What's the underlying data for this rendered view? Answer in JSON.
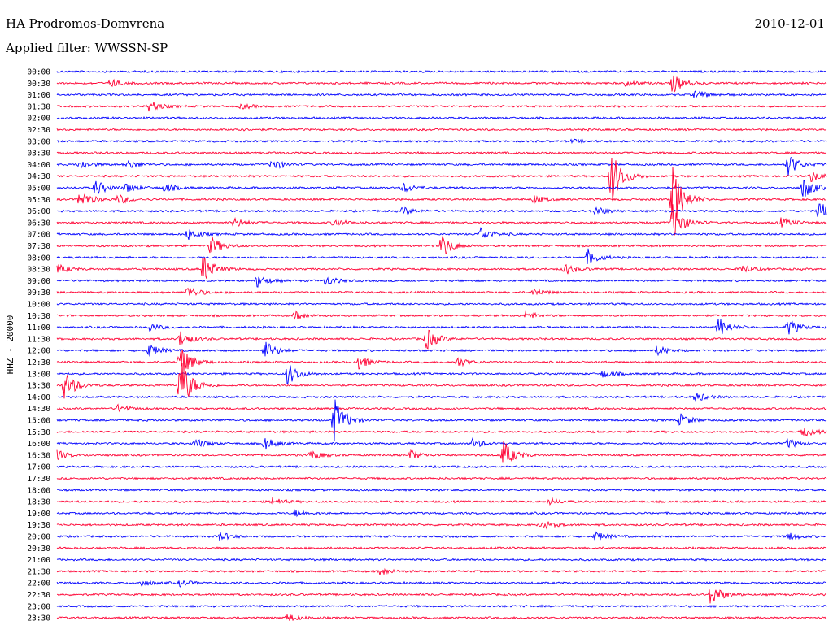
{
  "header": {
    "station": "HA Prodromos-Domvrena",
    "date": "2010-12-01",
    "filter": "Applied filter: WWSSN-SP"
  },
  "chart_data": {
    "type": "line",
    "ylabel": "HHZ - 20000",
    "colors": {
      "even_row": "#0000ff",
      "odd_row": "#ff0033"
    },
    "rows": [
      "00:00",
      "00:30",
      "01:00",
      "01:30",
      "02:00",
      "02:30",
      "03:00",
      "03:30",
      "04:00",
      "04:30",
      "05:00",
      "05:30",
      "06:00",
      "06:30",
      "07:00",
      "07:30",
      "08:00",
      "08:30",
      "09:00",
      "09:30",
      "10:00",
      "10:30",
      "11:00",
      "11:30",
      "12:00",
      "12:30",
      "13:00",
      "13:30",
      "14:00",
      "14:30",
      "15:00",
      "15:30",
      "16:00",
      "16:30",
      "17:00",
      "17:30",
      "18:00",
      "18:30",
      "19:00",
      "19:30",
      "20:00",
      "20:30",
      "21:00",
      "21:30",
      "22:00",
      "22:30",
      "23:00",
      "23:30"
    ],
    "events": [
      {
        "row": 1,
        "t": 0.07,
        "amp": 5
      },
      {
        "row": 1,
        "t": 0.74,
        "amp": 4
      },
      {
        "row": 1,
        "t": 0.8,
        "amp": 12
      },
      {
        "row": 2,
        "t": 0.83,
        "amp": 6
      },
      {
        "row": 3,
        "t": 0.12,
        "amp": 8
      },
      {
        "row": 3,
        "t": 0.24,
        "amp": 3
      },
      {
        "row": 5,
        "t": 0.23,
        "amp": 2
      },
      {
        "row": 6,
        "t": 0.67,
        "amp": 2
      },
      {
        "row": 8,
        "t": 0.03,
        "amp": 6
      },
      {
        "row": 8,
        "t": 0.09,
        "amp": 6
      },
      {
        "row": 8,
        "t": 0.28,
        "amp": 7
      },
      {
        "row": 8,
        "t": 0.95,
        "amp": 14
      },
      {
        "row": 9,
        "t": 0.72,
        "amp": 35
      },
      {
        "row": 9,
        "t": 0.98,
        "amp": 7
      },
      {
        "row": 10,
        "t": 0.05,
        "amp": 10
      },
      {
        "row": 10,
        "t": 0.09,
        "amp": 6
      },
      {
        "row": 10,
        "t": 0.14,
        "amp": 6
      },
      {
        "row": 10,
        "t": 0.45,
        "amp": 6
      },
      {
        "row": 10,
        "t": 0.97,
        "amp": 14
      },
      {
        "row": 11,
        "t": 0.03,
        "amp": 12
      },
      {
        "row": 11,
        "t": 0.08,
        "amp": 6
      },
      {
        "row": 11,
        "t": 0.62,
        "amp": 5
      },
      {
        "row": 11,
        "t": 0.8,
        "amp": 40
      },
      {
        "row": 12,
        "t": 0.45,
        "amp": 5
      },
      {
        "row": 12,
        "t": 0.7,
        "amp": 6
      },
      {
        "row": 12,
        "t": 0.99,
        "amp": 12
      },
      {
        "row": 13,
        "t": 0.23,
        "amp": 6
      },
      {
        "row": 13,
        "t": 0.36,
        "amp": 5
      },
      {
        "row": 13,
        "t": 0.8,
        "amp": 22
      },
      {
        "row": 13,
        "t": 0.94,
        "amp": 6
      },
      {
        "row": 14,
        "t": 0.17,
        "amp": 7
      },
      {
        "row": 14,
        "t": 0.55,
        "amp": 8
      },
      {
        "row": 15,
        "t": 0.2,
        "amp": 12
      },
      {
        "row": 15,
        "t": 0.5,
        "amp": 15
      },
      {
        "row": 16,
        "t": 0.69,
        "amp": 10
      },
      {
        "row": 17,
        "t": 0.0,
        "amp": 6
      },
      {
        "row": 17,
        "t": 0.19,
        "amp": 18
      },
      {
        "row": 17,
        "t": 0.66,
        "amp": 7
      },
      {
        "row": 17,
        "t": 0.89,
        "amp": 6
      },
      {
        "row": 18,
        "t": 0.26,
        "amp": 8
      },
      {
        "row": 18,
        "t": 0.35,
        "amp": 6
      },
      {
        "row": 19,
        "t": 0.17,
        "amp": 8
      },
      {
        "row": 19,
        "t": 0.62,
        "amp": 5
      },
      {
        "row": 21,
        "t": 0.31,
        "amp": 5
      },
      {
        "row": 21,
        "t": 0.61,
        "amp": 5
      },
      {
        "row": 22,
        "t": 0.12,
        "amp": 5
      },
      {
        "row": 22,
        "t": 0.86,
        "amp": 12
      },
      {
        "row": 22,
        "t": 0.95,
        "amp": 10
      },
      {
        "row": 23,
        "t": 0.16,
        "amp": 10
      },
      {
        "row": 23,
        "t": 0.48,
        "amp": 14
      },
      {
        "row": 24,
        "t": 0.12,
        "amp": 8
      },
      {
        "row": 24,
        "t": 0.27,
        "amp": 12
      },
      {
        "row": 24,
        "t": 0.78,
        "amp": 6
      },
      {
        "row": 25,
        "t": 0.16,
        "amp": 22
      },
      {
        "row": 25,
        "t": 0.39,
        "amp": 10
      },
      {
        "row": 25,
        "t": 0.52,
        "amp": 6
      },
      {
        "row": 26,
        "t": 0.3,
        "amp": 14
      },
      {
        "row": 26,
        "t": 0.71,
        "amp": 5
      },
      {
        "row": 27,
        "t": 0.01,
        "amp": 18
      },
      {
        "row": 27,
        "t": 0.16,
        "amp": 35
      },
      {
        "row": 28,
        "t": 0.83,
        "amp": 6
      },
      {
        "row": 29,
        "t": 0.08,
        "amp": 5
      },
      {
        "row": 30,
        "t": 0.36,
        "amp": 28
      },
      {
        "row": 30,
        "t": 0.81,
        "amp": 8
      },
      {
        "row": 31,
        "t": 0.97,
        "amp": 6
      },
      {
        "row": 32,
        "t": 0.18,
        "amp": 6
      },
      {
        "row": 32,
        "t": 0.27,
        "amp": 8
      },
      {
        "row": 32,
        "t": 0.54,
        "amp": 6
      },
      {
        "row": 32,
        "t": 0.95,
        "amp": 6
      },
      {
        "row": 33,
        "t": 0.0,
        "amp": 6
      },
      {
        "row": 33,
        "t": 0.33,
        "amp": 6
      },
      {
        "row": 33,
        "t": 0.46,
        "amp": 6
      },
      {
        "row": 33,
        "t": 0.58,
        "amp": 18
      },
      {
        "row": 37,
        "t": 0.28,
        "amp": 5
      },
      {
        "row": 37,
        "t": 0.64,
        "amp": 4
      },
      {
        "row": 38,
        "t": 0.31,
        "amp": 4
      },
      {
        "row": 39,
        "t": 0.63,
        "amp": 6
      },
      {
        "row": 40,
        "t": 0.21,
        "amp": 6
      },
      {
        "row": 40,
        "t": 0.7,
        "amp": 6
      },
      {
        "row": 40,
        "t": 0.95,
        "amp": 5
      },
      {
        "row": 43,
        "t": 0.42,
        "amp": 5
      },
      {
        "row": 44,
        "t": 0.11,
        "amp": 4
      },
      {
        "row": 44,
        "t": 0.16,
        "amp": 4
      },
      {
        "row": 45,
        "t": 0.85,
        "amp": 14
      },
      {
        "row": 47,
        "t": 0.3,
        "amp": 5
      }
    ]
  }
}
